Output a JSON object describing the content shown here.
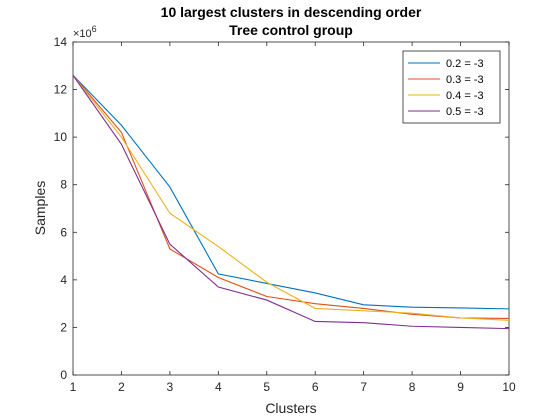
{
  "chart_data": {
    "type": "line",
    "title": "10 largest clusters in descending order",
    "subtitle": "Tree control group",
    "xlabel": "Clusters",
    "ylabel": "Samples",
    "y_multiplier": "×10",
    "y_multiplier_exponent": "6",
    "xlim": [
      1,
      10
    ],
    "ylim": [
      0,
      14
    ],
    "xticks": [
      1,
      2,
      3,
      4,
      5,
      6,
      7,
      8,
      9,
      10
    ],
    "yticks": [
      0,
      2,
      4,
      6,
      8,
      10,
      12,
      14
    ],
    "grid": false,
    "legend_position": "top-right",
    "x": [
      1,
      2,
      3,
      4,
      5,
      6,
      7,
      8,
      9,
      10
    ],
    "series": [
      {
        "name": "0.2 = -3",
        "color": "#0072BD",
        "values": [
          12.6,
          10.5,
          7.9,
          4.25,
          3.85,
          3.45,
          2.95,
          2.85,
          2.82,
          2.78
        ]
      },
      {
        "name": "0.3 = -3",
        "color": "#D95319",
        "values": [
          12.6,
          10.2,
          5.3,
          4.1,
          3.3,
          3.0,
          2.8,
          2.55,
          2.4,
          2.38
        ]
      },
      {
        "name": "0.4 = -3",
        "color": "#EDB120",
        "values": [
          12.6,
          10.0,
          6.8,
          5.4,
          3.9,
          2.8,
          2.7,
          2.6,
          2.4,
          2.3
        ]
      },
      {
        "name": "0.5 = -3",
        "color": "#7E2F8E",
        "values": [
          12.6,
          9.7,
          5.5,
          3.7,
          3.15,
          2.25,
          2.2,
          2.05,
          2.0,
          1.95
        ]
      }
    ]
  }
}
